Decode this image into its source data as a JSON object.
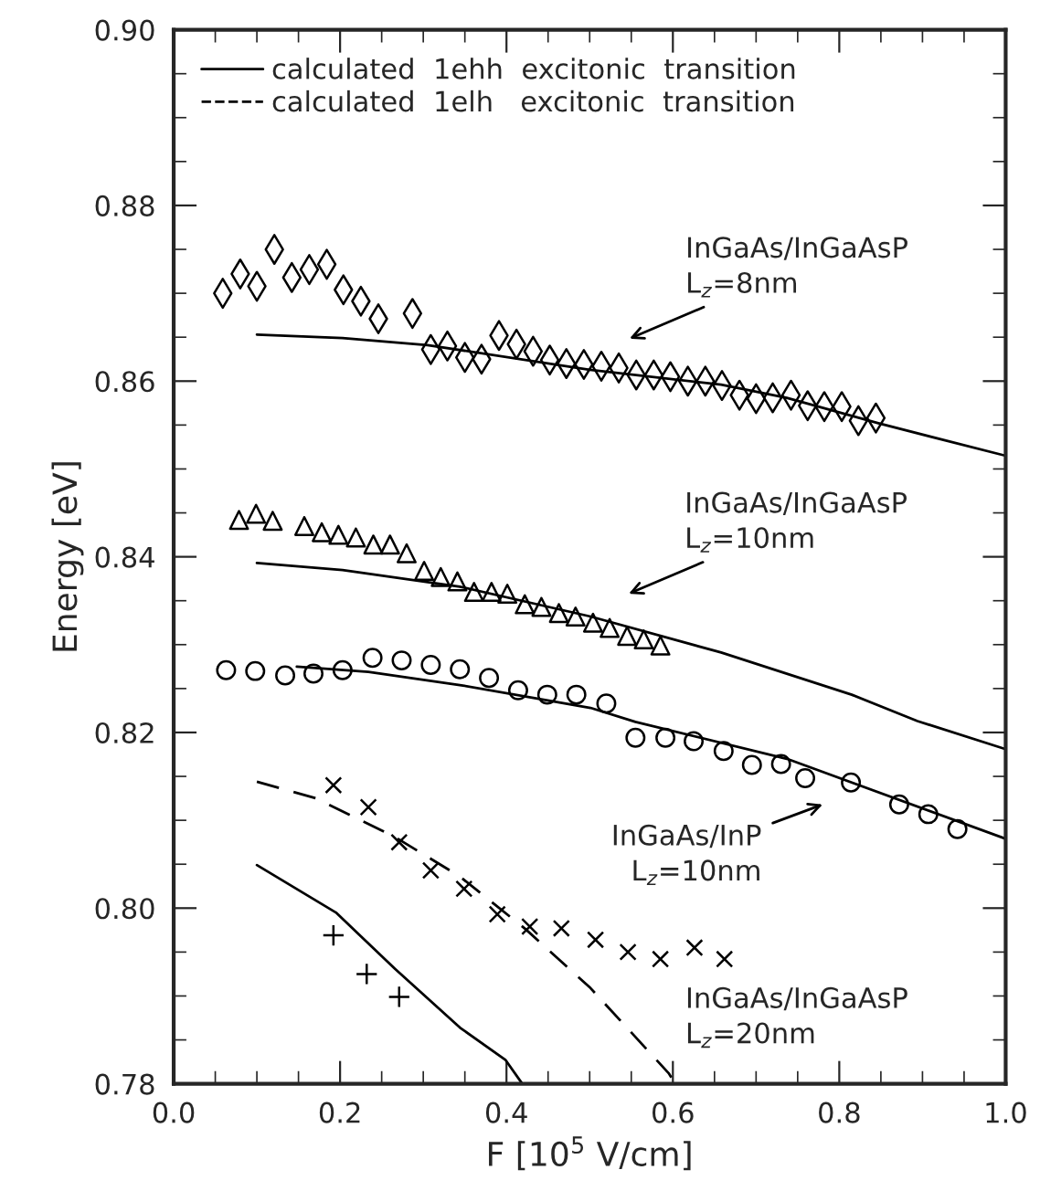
{
  "chart_data": {
    "type": "scatter",
    "xlabel": "F [10$^{5}$ V/cm]",
    "ylabel": "Energy [eV]",
    "xlim": [
      0.0,
      1.0
    ],
    "ylim": [
      0.78,
      0.9
    ],
    "xticks": [
      {
        "value": 0.0,
        "label": "0.0"
      },
      {
        "value": 0.2,
        "label": "0.2"
      },
      {
        "value": 0.4,
        "label": "0.4"
      },
      {
        "value": 0.6,
        "label": "0.6"
      },
      {
        "value": 0.8,
        "label": "0.8"
      },
      {
        "value": 1.0,
        "label": "1.0"
      }
    ],
    "yticks": [
      {
        "value": 0.78,
        "label": "0.78"
      },
      {
        "value": 0.8,
        "label": "0.80"
      },
      {
        "value": 0.82,
        "label": "0.82"
      },
      {
        "value": 0.84,
        "label": "0.84"
      },
      {
        "value": 0.86,
        "label": "0.86"
      },
      {
        "value": 0.88,
        "label": "0.88"
      },
      {
        "value": 0.9,
        "label": "0.90"
      }
    ],
    "grid": false,
    "legend": "top left",
    "series": [
      {
        "type": "scatter",
        "marker": "diamond",
        "color": "#000000",
        "x": [
          0.059,
          0.08,
          0.1,
          0.121,
          0.142,
          0.163,
          0.184,
          0.204,
          0.225,
          0.246,
          0.287,
          0.309,
          0.329,
          0.35,
          0.37,
          0.391,
          0.412,
          0.432,
          0.452,
          0.472,
          0.493,
          0.514,
          0.535,
          0.556,
          0.577,
          0.597,
          0.618,
          0.639,
          0.659,
          0.68,
          0.7,
          0.72,
          0.742,
          0.762,
          0.782,
          0.803,
          0.823,
          0.844
        ],
        "values": [
          0.87,
          0.8722,
          0.8708,
          0.875,
          0.8718,
          0.8727,
          0.8733,
          0.8704,
          0.8691,
          0.8671,
          0.8677,
          0.8636,
          0.864,
          0.8627,
          0.8625,
          0.8652,
          0.8642,
          0.8634,
          0.8624,
          0.862,
          0.8619,
          0.8617,
          0.8615,
          0.8607,
          0.8607,
          0.8605,
          0.86,
          0.86,
          0.8595,
          0.8584,
          0.858,
          0.8581,
          0.8584,
          0.8572,
          0.8571,
          0.8571,
          0.8555,
          0.8558
        ]
      },
      {
        "type": "line",
        "line_style": "solid",
        "name": "calculated  1ehh  excitonic  transition",
        "color": "#000000",
        "x": [
          0.1,
          0.203,
          0.305,
          0.5,
          0.658,
          0.737,
          0.847,
          1.0
        ],
        "values": [
          0.8653,
          0.8649,
          0.8641,
          0.8613,
          0.8596,
          0.8581,
          0.8552,
          0.8515
        ]
      },
      {
        "type": "scatter",
        "marker": "triangle",
        "color": "#000000",
        "x": [
          0.0785,
          0.099,
          0.119,
          0.157,
          0.178,
          0.198,
          0.219,
          0.24,
          0.26,
          0.28,
          0.301,
          0.321,
          0.341,
          0.361,
          0.382,
          0.401,
          0.422,
          0.442,
          0.463,
          0.483,
          0.504,
          0.524,
          0.545,
          0.565,
          0.585
        ],
        "values": [
          0.8442,
          0.8449,
          0.8441,
          0.8435,
          0.8428,
          0.8425,
          0.8422,
          0.8414,
          0.8414,
          0.8404,
          0.8384,
          0.8377,
          0.8372,
          0.836,
          0.836,
          0.8358,
          0.8346,
          0.8343,
          0.8336,
          0.8332,
          0.8325,
          0.8319,
          0.831,
          0.8306,
          0.8299
        ]
      },
      {
        "type": "line",
        "line_style": "solid",
        "color": "#000000",
        "x": [
          0.1,
          0.203,
          0.344,
          0.501,
          0.658,
          0.815,
          0.894,
          1.0
        ],
        "values": [
          0.8393,
          0.8385,
          0.8366,
          0.8332,
          0.8291,
          0.8243,
          0.8213,
          0.8181
        ]
      },
      {
        "type": "scatter",
        "marker": "circle",
        "color": "#000000",
        "x": [
          0.063,
          0.098,
          0.134,
          0.168,
          0.203,
          0.239,
          0.274,
          0.309,
          0.344,
          0.379,
          0.414,
          0.449,
          0.484,
          0.52,
          0.555,
          0.591,
          0.625,
          0.661,
          0.695,
          0.73,
          0.759,
          0.814,
          0.872,
          0.907,
          0.942
        ],
        "values": [
          0.8271,
          0.827,
          0.8265,
          0.8267,
          0.8271,
          0.8285,
          0.8282,
          0.8277,
          0.8272,
          0.8262,
          0.8248,
          0.8243,
          0.8243,
          0.8233,
          0.8194,
          0.8194,
          0.819,
          0.8179,
          0.8163,
          0.8164,
          0.8148,
          0.8143,
          0.8118,
          0.8107,
          0.809
        ]
      },
      {
        "type": "line",
        "line_style": "solid",
        "color": "#000000",
        "x": [
          0.148,
          0.234,
          0.344,
          0.501,
          0.555,
          0.737,
          1.0
        ],
        "values": [
          0.8275,
          0.8269,
          0.8254,
          0.8228,
          0.8212,
          0.817,
          0.8079
        ]
      },
      {
        "type": "scatter",
        "marker": "cross",
        "color": "#000000",
        "x": [
          0.192,
          0.234,
          0.271,
          0.309,
          0.349,
          0.389,
          0.428,
          0.466,
          0.507,
          0.546,
          0.585,
          0.626,
          0.662
        ],
        "values": [
          0.814,
          0.8115,
          0.8075,
          0.8043,
          0.8022,
          0.7993,
          0.7979,
          0.7977,
          0.7964,
          0.795,
          0.7942,
          0.7955,
          0.7942
        ]
      },
      {
        "type": "line",
        "line_style": "dashed",
        "name": "calculated  1elh   excitonic  transition",
        "color": "#000000",
        "x": [
          0.1,
          0.171,
          0.266,
          0.344,
          0.423,
          0.501,
          0.595,
          0.603
        ],
        "values": [
          0.8144,
          0.8125,
          0.8081,
          0.8036,
          0.7976,
          0.7909,
          0.7812,
          0.78
        ]
      },
      {
        "type": "scatter",
        "marker": "plus",
        "color": "#000000",
        "x": [
          0.192,
          0.232,
          0.271
        ],
        "values": [
          0.7969,
          0.7925,
          0.7899
        ]
      },
      {
        "type": "line",
        "line_style": "solid",
        "color": "#000000",
        "x": [
          0.1,
          0.195,
          0.266,
          0.344,
          0.399,
          0.419
        ],
        "values": [
          0.8049,
          0.7995,
          0.7931,
          0.7864,
          0.7827,
          0.78
        ]
      }
    ],
    "annotations": [
      "InGaAs/InGaAsP\nL$_{z}$=8nm",
      "InGaAs/InGaAsP\nL$_{z}$=10nm",
      "InGaAs/InP\nL$_{z}$=10nm",
      "InGaAs/InGaAsP\nL$_{z}$=20nm"
    ]
  }
}
